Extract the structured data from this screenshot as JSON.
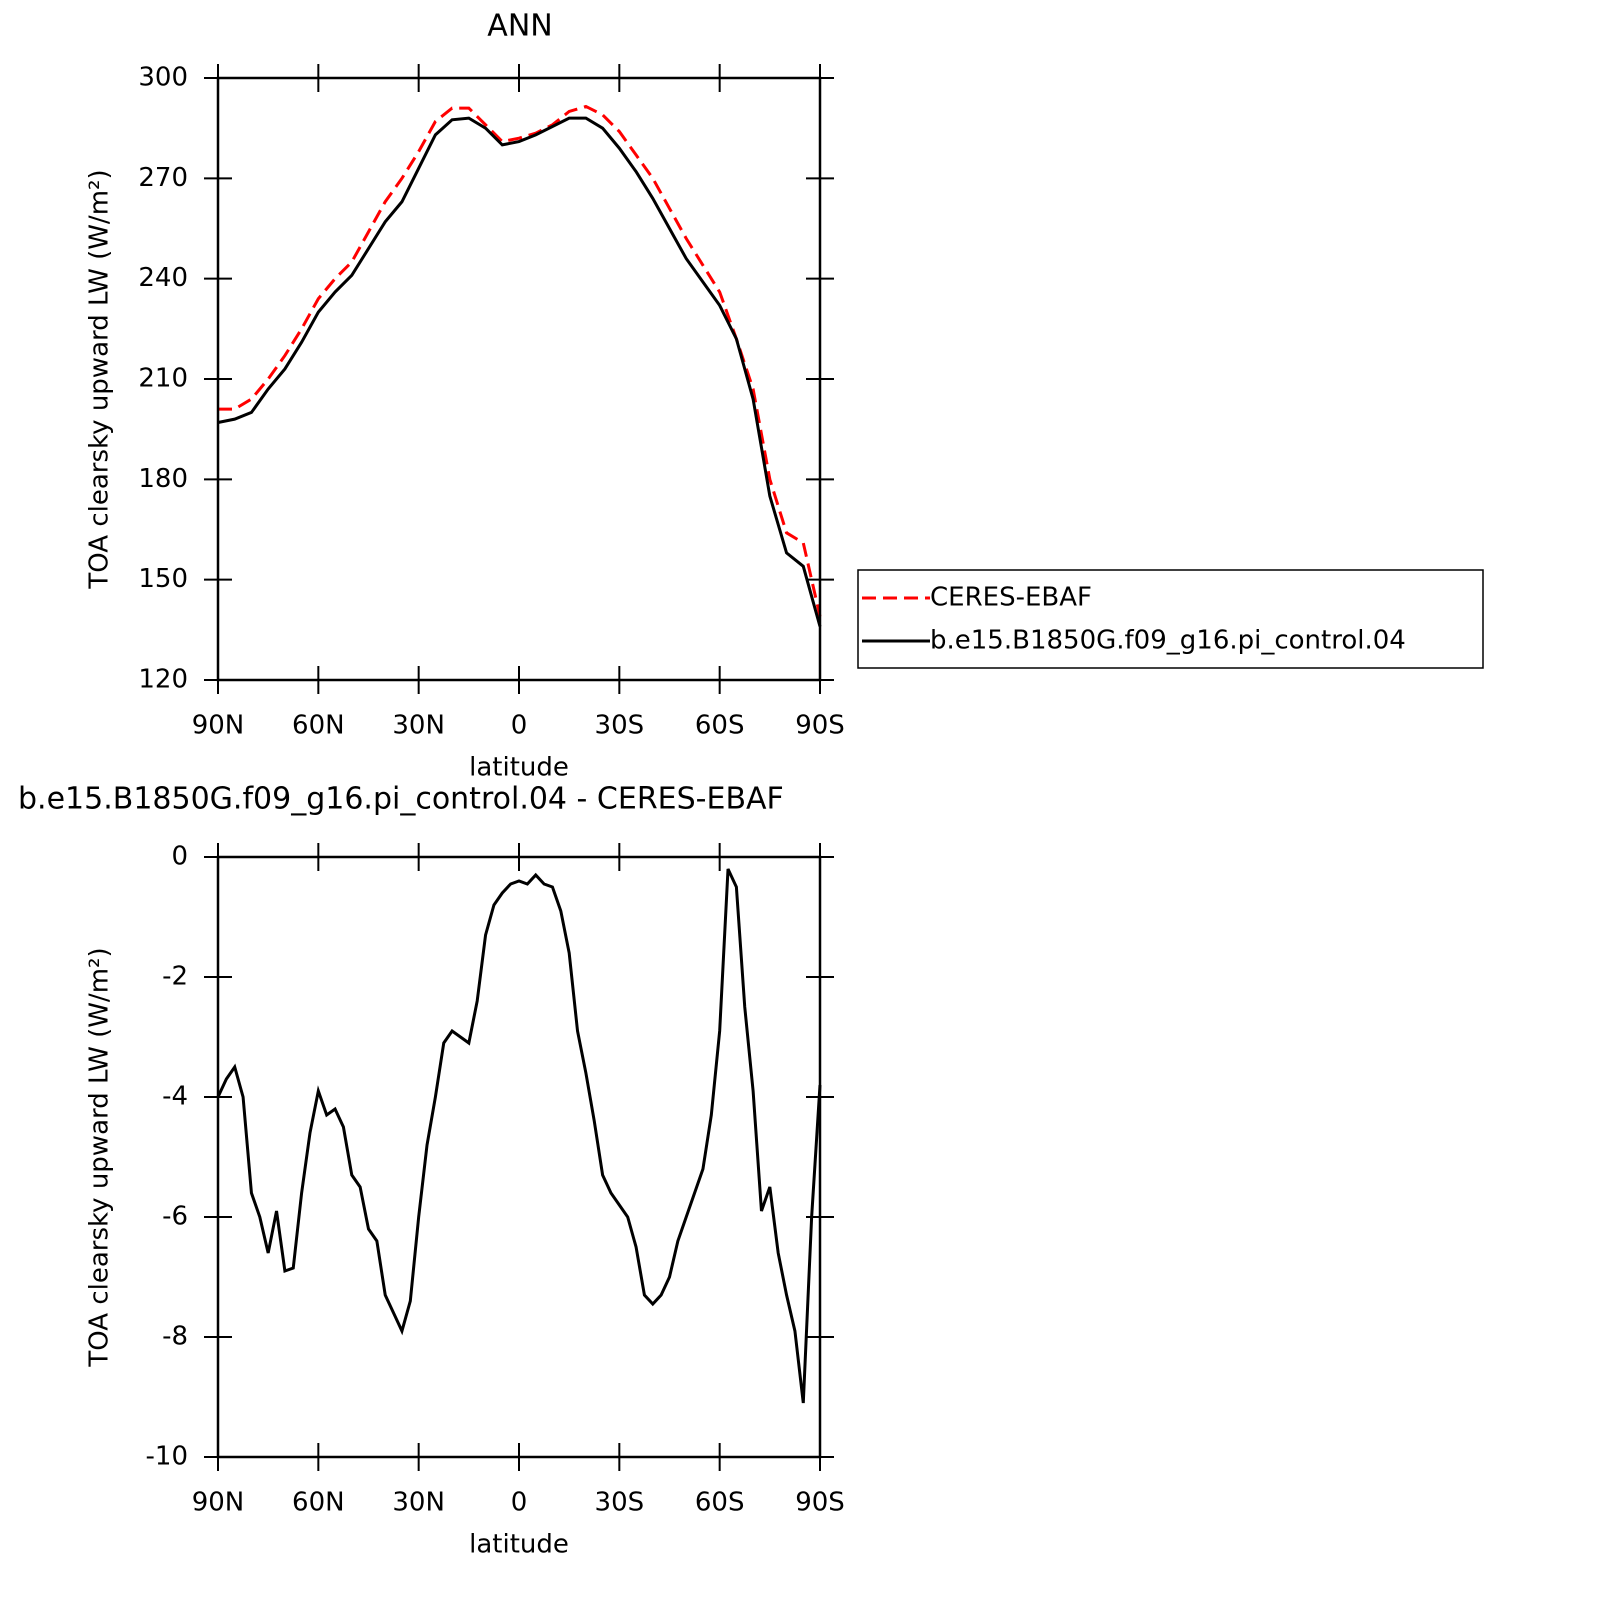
{
  "chart_data": [
    {
      "type": "line",
      "title": "ANN",
      "xlabel": "latitude",
      "ylabel": "TOA clearsky upward LW (W/m²)",
      "x": [
        90,
        85,
        80,
        75,
        70,
        65,
        60,
        55,
        50,
        45,
        40,
        35,
        30,
        25,
        20,
        15,
        10,
        5,
        0,
        -5,
        -10,
        -15,
        -20,
        -25,
        -30,
        -35,
        -40,
        -45,
        -50,
        -55,
        -60,
        -65,
        -70,
        -75,
        -80,
        -85,
        -90
      ],
      "series": [
        {
          "name": "CERES-EBAF",
          "color": "#ff0000",
          "dashed": true,
          "values": [
            201,
            201,
            204,
            210,
            217,
            225,
            234,
            240,
            245,
            254,
            263,
            270,
            278,
            287,
            291,
            291,
            286,
            281,
            282,
            283.5,
            286,
            290,
            291.5,
            289,
            284,
            277,
            270,
            261,
            252,
            244,
            236,
            222,
            207,
            180,
            164,
            161,
            139
          ]
        },
        {
          "name": "b.e15.B1850G.f09_g16.pi_control.04",
          "color": "#000000",
          "dashed": false,
          "values": [
            197,
            198,
            200,
            207,
            213,
            221,
            230,
            236,
            241,
            249,
            257,
            263,
            273,
            283,
            287.5,
            288,
            285,
            280,
            281,
            283,
            285.5,
            288,
            288,
            285,
            279,
            272,
            264,
            255,
            246,
            239,
            232,
            222,
            204,
            175,
            158,
            154,
            136
          ]
        }
      ],
      "xlim": [
        90,
        -90
      ],
      "ylim": [
        120,
        300
      ],
      "xticks": [
        {
          "value": 90,
          "label": "90N"
        },
        {
          "value": 60,
          "label": "60N"
        },
        {
          "value": 30,
          "label": "30N"
        },
        0,
        {
          "value": -30,
          "label": "30S"
        },
        {
          "value": -60,
          "label": "60S"
        },
        {
          "value": -90,
          "label": "90S"
        }
      ],
      "yticks": [
        120,
        150,
        180,
        210,
        240,
        270,
        300
      ],
      "legend": "right"
    },
    {
      "type": "line",
      "title": "b.e15.B1850G.f09_g16.pi_control.04 - CERES-EBAF",
      "xlabel": "latitude",
      "ylabel": "TOA clearsky upward LW (W/m²)",
      "x": [
        90,
        87.5,
        85,
        82.5,
        80,
        77.5,
        75,
        72.5,
        70,
        67.5,
        65,
        62.5,
        60,
        57.5,
        55,
        52.5,
        50,
        47.5,
        45,
        42.5,
        40,
        37.5,
        35,
        32.5,
        30,
        27.5,
        25,
        22.5,
        20,
        17.5,
        15,
        12.5,
        10,
        7.5,
        5,
        2.5,
        0,
        -2.5,
        -5,
        -7.5,
        -10,
        -12.5,
        -15,
        -17.5,
        -20,
        -22.5,
        -25,
        -27.5,
        -30,
        -32.5,
        -35,
        -37.5,
        -40,
        -42.5,
        -45,
        -47.5,
        -50,
        -52.5,
        -55,
        -57.5,
        -60,
        -62.5,
        -65,
        -67.5,
        -70,
        -72.5,
        -75,
        -77.5,
        -80,
        -82.5,
        -85,
        -87.5,
        -90
      ],
      "series": [
        {
          "color": "#000000",
          "dashed": false,
          "values": [
            -4.0,
            -3.7,
            -3.5,
            -4.0,
            -5.6,
            -6.0,
            -6.6,
            -5.9,
            -6.9,
            -6.85,
            -5.6,
            -4.6,
            -3.9,
            -4.3,
            -4.2,
            -4.5,
            -5.3,
            -5.5,
            -6.2,
            -6.4,
            -7.3,
            -7.6,
            -7.9,
            -7.4,
            -6.0,
            -4.8,
            -4.0,
            -3.1,
            -2.9,
            -3.0,
            -3.1,
            -2.4,
            -1.3,
            -0.8,
            -0.6,
            -0.45,
            -0.4,
            -0.45,
            -0.3,
            -0.45,
            -0.5,
            -0.9,
            -1.6,
            -2.9,
            -3.6,
            -4.4,
            -5.3,
            -5.6,
            -5.8,
            -6.0,
            -6.5,
            -7.3,
            -7.45,
            -7.3,
            -7.0,
            -6.4,
            -6.0,
            -5.6,
            -5.2,
            -4.3,
            -2.9,
            -0.2,
            -0.5,
            -2.5,
            -3.9,
            -5.9,
            -5.5,
            -6.6,
            -7.3,
            -7.9,
            -9.1,
            -6.0,
            -3.8
          ]
        }
      ],
      "xlim": [
        90,
        -90
      ],
      "ylim": [
        -10,
        0
      ],
      "xticks": [
        {
          "value": 90,
          "label": "90N"
        },
        {
          "value": 60,
          "label": "60N"
        },
        {
          "value": 30,
          "label": "30N"
        },
        0,
        {
          "value": -30,
          "label": "30S"
        },
        {
          "value": -60,
          "label": "60S"
        },
        {
          "value": -90,
          "label": "90S"
        }
      ],
      "yticks": [
        -10,
        -8,
        -6,
        -4,
        -2,
        0
      ]
    }
  ]
}
